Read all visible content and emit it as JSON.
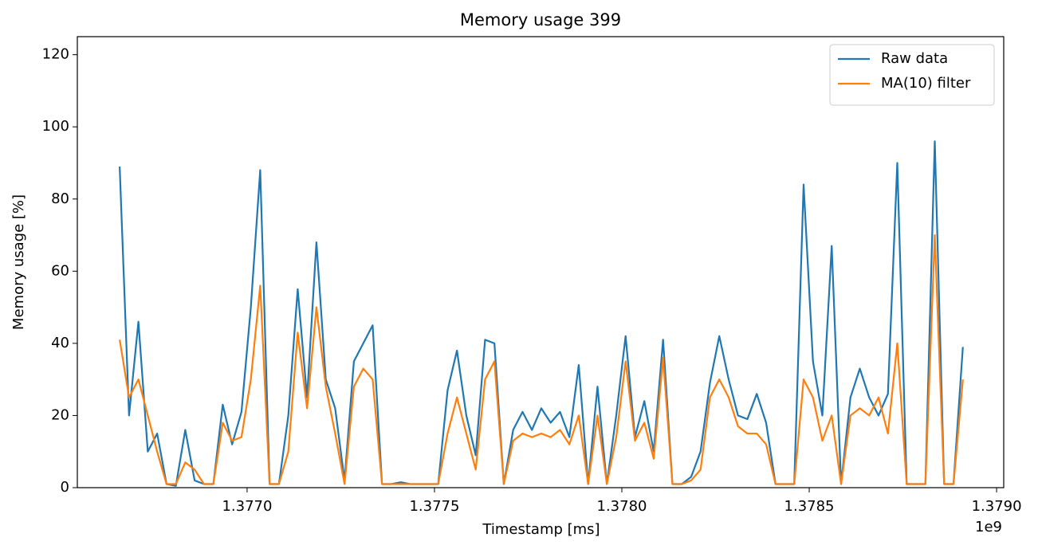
{
  "chart_data": {
    "type": "line",
    "title": "Memory usage 399",
    "x_label": "Timestamp [ms]",
    "y_label": "Memory usage [%]",
    "x_offset_label": "1e9",
    "xlim": [
      1376547000,
      1379019000
    ],
    "xticks": [
      {
        "value": 1377000000,
        "label": "1.3770"
      },
      {
        "value": 1377500000,
        "label": "1.3775"
      },
      {
        "value": 1378000000,
        "label": "1.3780"
      },
      {
        "value": 1378500000,
        "label": "1.3785"
      },
      {
        "value": 1379000000,
        "label": "1.3790"
      }
    ],
    "ylim": [
      0,
      125
    ],
    "yticks": [
      0,
      20,
      40,
      60,
      80,
      100,
      120
    ],
    "grid": false,
    "legend": "upper right",
    "x": [
      1376660000,
      1376685000,
      1376710000,
      1376735000,
      1376760000,
      1376785000,
      1376810000,
      1376835000,
      1376860000,
      1376885000,
      1376910000,
      1376935000,
      1376960000,
      1376985000,
      1377010000,
      1377035000,
      1377060000,
      1377085000,
      1377110000,
      1377135000,
      1377160000,
      1377185000,
      1377210000,
      1377235000,
      1377260000,
      1377285000,
      1377310000,
      1377335000,
      1377360000,
      1377385000,
      1377410000,
      1377435000,
      1377460000,
      1377485000,
      1377510000,
      1377535000,
      1377560000,
      1377585000,
      1377610000,
      1377635000,
      1377660000,
      1377685000,
      1377710000,
      1377735000,
      1377760000,
      1377785000,
      1377810000,
      1377835000,
      1377860000,
      1377885000,
      1377910000,
      1377935000,
      1377960000,
      1377985000,
      1378010000,
      1378035000,
      1378060000,
      1378085000,
      1378110000,
      1378135000,
      1378160000,
      1378185000,
      1378210000,
      1378235000,
      1378260000,
      1378285000,
      1378310000,
      1378335000,
      1378360000,
      1378385000,
      1378410000,
      1378435000,
      1378460000,
      1378485000,
      1378510000,
      1378535000,
      1378560000,
      1378585000,
      1378610000,
      1378635000,
      1378660000,
      1378685000,
      1378710000,
      1378735000,
      1378760000,
      1378785000,
      1378810000,
      1378835000,
      1378860000,
      1378885000,
      1378910000
    ],
    "series": [
      {
        "name": "Raw data",
        "color": "#1f77b4",
        "values": [
          89,
          20,
          46,
          10,
          15,
          1,
          0.5,
          16,
          2,
          1,
          1,
          23,
          12,
          21,
          50,
          88,
          1,
          1,
          20,
          55,
          25,
          68,
          30,
          22,
          2,
          35,
          40,
          45,
          1,
          1,
          1.5,
          1,
          1,
          1,
          1,
          27,
          38,
          20,
          9,
          41,
          40,
          1,
          16,
          21,
          16,
          22,
          18,
          21,
          14,
          34,
          1,
          28,
          1,
          20,
          42,
          14,
          24,
          10,
          41,
          1,
          1,
          3,
          10,
          29,
          42,
          30,
          20,
          19,
          26,
          18,
          1,
          1,
          1,
          84,
          35,
          20,
          67,
          1,
          25,
          33,
          25,
          20,
          26,
          90,
          1,
          1,
          1,
          96,
          1,
          1,
          39
        ]
      },
      {
        "name": "MA(10) filter",
        "color": "#ff7f0e",
        "values": [
          41,
          25,
          30,
          20,
          10,
          1,
          1,
          7,
          5,
          1,
          1,
          18,
          13,
          14,
          30,
          56,
          1,
          1,
          10,
          43,
          22,
          50,
          28,
          15,
          1,
          28,
          33,
          30,
          1,
          1,
          1,
          1,
          1,
          1,
          1,
          15,
          25,
          15,
          5,
          30,
          35,
          1,
          13,
          15,
          14,
          15,
          14,
          16,
          12,
          20,
          1,
          20,
          1,
          14,
          35,
          13,
          18,
          8,
          36,
          1,
          1,
          2,
          5,
          25,
          30,
          25,
          17,
          15,
          15,
          12,
          1,
          1,
          1,
          30,
          25,
          13,
          20,
          1,
          20,
          22,
          20,
          25,
          15,
          40,
          1,
          1,
          1,
          70,
          1,
          1,
          30
        ]
      }
    ]
  }
}
